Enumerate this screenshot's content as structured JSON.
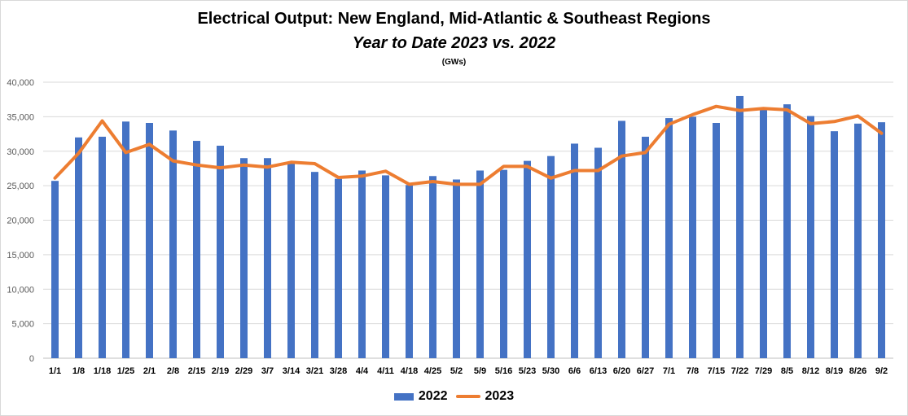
{
  "chart_data": {
    "type": "bar+line",
    "title": "Electrical Output:  New England, Mid-Atlantic & Southeast Regions",
    "subtitle": "Year to Date 2023 vs. 2022",
    "units": "(GWs)",
    "categories": [
      "1/1",
      "1/8",
      "1/18",
      "1/25",
      "2/1",
      "2/8",
      "2/15",
      "2/19",
      "2/29",
      "3/7",
      "3/14",
      "3/21",
      "3/28",
      "4/4",
      "4/11",
      "4/18",
      "4/25",
      "5/2",
      "5/9",
      "5/16",
      "5/23",
      "5/30",
      "6/6",
      "6/13",
      "6/20",
      "6/27",
      "7/1",
      "7/8",
      "7/15",
      "7/22",
      "7/29",
      "8/5",
      "8/12",
      "8/19",
      "8/26",
      "9/2"
    ],
    "series": [
      {
        "name": "2022",
        "type": "bar",
        "color": "#4472c4",
        "values": [
          25700,
          32000,
          32100,
          34300,
          34100,
          33000,
          31500,
          30800,
          29000,
          29000,
          28200,
          27000,
          26000,
          27200,
          26500,
          25100,
          26400,
          25900,
          27200,
          27300,
          28600,
          29300,
          31100,
          30500,
          34400,
          32100,
          34800,
          35000,
          34100,
          38000,
          36000,
          36800,
          35100,
          32900,
          34000,
          34200
        ]
      },
      {
        "name": "2023",
        "type": "line",
        "color": "#ed7d31",
        "values": [
          26100,
          29700,
          34400,
          29800,
          31000,
          28600,
          28000,
          27600,
          28000,
          27700,
          28400,
          28200,
          26200,
          26400,
          27100,
          25200,
          25600,
          25200,
          25200,
          27800,
          27800,
          26100,
          27200,
          27200,
          29300,
          29800,
          33900,
          35300,
          36500,
          35900,
          36200,
          36000,
          34000,
          34300,
          35100,
          32600
        ]
      }
    ],
    "ylim": [
      0,
      40000
    ],
    "yticks": [
      0,
      5000,
      10000,
      15000,
      20000,
      25000,
      30000,
      35000,
      40000
    ],
    "ytick_labels": [
      "0",
      "5,000",
      "10,000",
      "15,000",
      "20,000",
      "25,000",
      "30,000",
      "35,000",
      "40,000"
    ],
    "grid": true,
    "legend_position": "bottom"
  }
}
